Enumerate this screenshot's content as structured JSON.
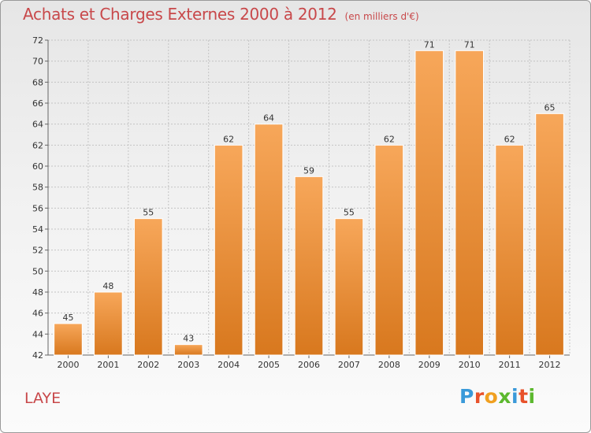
{
  "header": {
    "title": "Achats et Charges Externes 2000 à 2012",
    "subtitle": "(en milliers d'€)"
  },
  "footer": {
    "commune": "LAYE",
    "logo_letters": [
      "P",
      "r",
      "o",
      "x",
      "i",
      "t",
      "i"
    ],
    "logo_colors": [
      "#3a9ad9",
      "#e8522b",
      "#f0a020",
      "#5cb82e",
      "#3a9ad9",
      "#e8522b",
      "#5cb82e"
    ]
  },
  "colors": {
    "title": "#c8484a",
    "bar_light": "#f7a75a",
    "bar_dark": "#d8781e",
    "grid": "#c4c4c4"
  },
  "chart_data": {
    "type": "bar",
    "title": "Achats et Charges Externes 2000 à 2012",
    "subtitle": "(en milliers d'€)",
    "categories": [
      "2000",
      "2001",
      "2002",
      "2003",
      "2004",
      "2005",
      "2006",
      "2007",
      "2008",
      "2009",
      "2010",
      "2011",
      "2012"
    ],
    "values": [
      45,
      48,
      55,
      43,
      62,
      64,
      59,
      55,
      62,
      71,
      71,
      62,
      65
    ],
    "ylim": [
      42,
      72
    ],
    "yticks": [
      42,
      44,
      46,
      48,
      50,
      52,
      54,
      56,
      58,
      60,
      62,
      64,
      66,
      68,
      70,
      72
    ],
    "grid": true,
    "data_labels": true
  }
}
